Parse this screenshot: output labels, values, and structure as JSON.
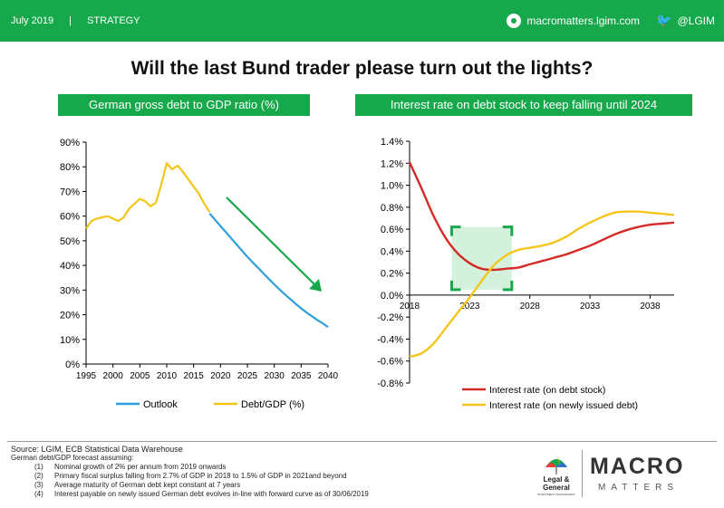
{
  "header": {
    "date": "July 2019",
    "separator": "|",
    "section": "STRATEGY",
    "site": "macromatters.lgim.com",
    "handle": "@LGIM",
    "site_icon": "globe-icon",
    "social_icon": "twitter-bird-icon"
  },
  "title": "Will the last Bund trader please turn out the lights?",
  "colors": {
    "brand_green": "#17a84b",
    "outlook": "#2e9fd8",
    "debt": "#f4c51a",
    "interest_stock": "#d42a26",
    "interest_new": "#f4c51a",
    "arrow": "#17a84b",
    "box": "#cdeed7"
  },
  "chart_data": [
    {
      "type": "line",
      "title": "German gross debt to GDP ratio (%)",
      "xlabel": "",
      "ylabel": "",
      "xlim": [
        1995,
        2040
      ],
      "ylim": [
        0,
        90
      ],
      "x_ticks": [
        "1995",
        "2000",
        "2005",
        "2010",
        "2015",
        "2020",
        "2025",
        "2030",
        "2035",
        "2040"
      ],
      "y_ticks": [
        "0%",
        "10%",
        "20%",
        "30%",
        "40%",
        "50%",
        "60%",
        "70%",
        "80%",
        "90%"
      ],
      "legend_position": "bottom",
      "series": [
        {
          "name": "Outlook",
          "color": "#2e9fd8",
          "x": [
            2018,
            2019,
            2020,
            2021,
            2022,
            2023,
            2024,
            2025,
            2026,
            2027,
            2028,
            2029,
            2030,
            2031,
            2032,
            2033,
            2034,
            2035,
            2036,
            2037,
            2038,
            2039,
            2040
          ],
          "y": [
            61,
            58.5,
            56,
            53.5,
            51,
            48.5,
            46,
            43.5,
            41.2,
            39,
            36.7,
            34.5,
            32.3,
            30.2,
            28.2,
            26.3,
            24.4,
            22.6,
            20.9,
            19.4,
            17.9,
            16.5,
            15
          ]
        },
        {
          "name": "Debt/GDP (%)",
          "color": "#f4c51a",
          "x": [
            1995,
            1996,
            1997,
            1998,
            1999,
            2000,
            2001,
            2002,
            2003,
            2004,
            2005,
            2006,
            2007,
            2008,
            2009,
            2010,
            2011,
            2012,
            2013,
            2014,
            2015,
            2016,
            2017,
            2018
          ],
          "y": [
            55,
            58,
            59,
            59.5,
            60,
            59,
            58,
            59.5,
            63,
            65,
            67,
            66,
            64,
            65.5,
            73,
            81.5,
            79,
            80.5,
            78,
            75,
            72,
            69,
            65,
            61.5
          ]
        }
      ]
    },
    {
      "type": "line",
      "title": "Interest rate on debt stock to keep falling until 2024",
      "xlabel": "",
      "ylabel": "",
      "xlim": [
        2018,
        2040
      ],
      "ylim": [
        -0.8,
        1.4
      ],
      "x_ticks": [
        "2018",
        "2023",
        "2028",
        "2033",
        "2038"
      ],
      "y_ticks": [
        "-0.8%",
        "-0.6%",
        "-0.4%",
        "-0.2%",
        "0.0%",
        "0.2%",
        "0.4%",
        "0.6%",
        "0.8%",
        "1.0%",
        "1.2%",
        "1.4%"
      ],
      "legend_position": "bottom",
      "series": [
        {
          "name": "Interest rate (on debt stock)",
          "color": "#d42a26",
          "x": [
            2018,
            2019,
            2020,
            2021,
            2022,
            2023,
            2024,
            2025,
            2026,
            2027,
            2028,
            2029,
            2030,
            2031,
            2032,
            2033,
            2034,
            2035,
            2036,
            2037,
            2038,
            2039,
            2040
          ],
          "y": [
            1.21,
            0.97,
            0.72,
            0.52,
            0.38,
            0.29,
            0.24,
            0.23,
            0.24,
            0.25,
            0.28,
            0.31,
            0.34,
            0.37,
            0.41,
            0.45,
            0.5,
            0.55,
            0.59,
            0.62,
            0.64,
            0.65,
            0.66
          ]
        },
        {
          "name": "Interest rate (on newly issued debt)",
          "color": "#f4c51a",
          "x": [
            2018,
            2019,
            2020,
            2021,
            2022,
            2023,
            2024,
            2025,
            2026,
            2027,
            2028,
            2029,
            2030,
            2031,
            2032,
            2033,
            2034,
            2035,
            2036,
            2037,
            2038,
            2039,
            2040
          ],
          "y": [
            -0.56,
            -0.53,
            -0.44,
            -0.3,
            -0.16,
            -0.02,
            0.13,
            0.27,
            0.36,
            0.41,
            0.43,
            0.45,
            0.48,
            0.53,
            0.6,
            0.66,
            0.71,
            0.75,
            0.76,
            0.76,
            0.75,
            0.74,
            0.73
          ]
        }
      ]
    }
  ],
  "footer": {
    "source": "Source: LGIM, ECB Statistical Data Warehouse",
    "assumption_intro": "German debt/GDP  forecast assuming:",
    "notes": [
      {
        "n": "(1)",
        "text": "Nominal growth of 2% per annum from 2019 onwards"
      },
      {
        "n": "(2)",
        "text": "Primary fiscal surplus falling from 2.7% of GDP  in 2018 to 1.5% of GDP  in 2021and beyond"
      },
      {
        "n": "(3)",
        "text": "Average maturity of German  debt kept constant at 7 years"
      },
      {
        "n": "(4)",
        "text": "Interest payable on newly issued German debt evolves in-line with forward curve as of 30/06/2019"
      }
    ],
    "lg_logo": "Legal & General",
    "lg_logo_sub": "INVESTMENT MANAGEMENT",
    "macro": "MACRO",
    "matters": "MATTERS"
  }
}
